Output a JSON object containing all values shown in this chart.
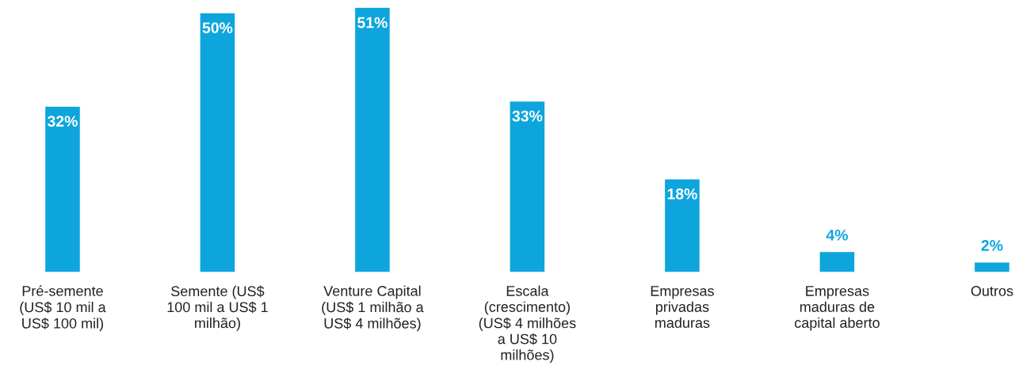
{
  "chart_data": {
    "type": "bar",
    "categories": [
      "Pré-semente (US$ 10 mil a US$ 100 mil)",
      "Semente (US$ 100 mil a US$ 1 milhão)",
      "Venture Capital (US$ 1 milhão a US$ 4 milhões)",
      "Escala (crescimento) (US$ 4 milhões a US$ 10 milhões)",
      "Empresas privadas maduras",
      "Empresas maduras de capital aberto",
      "Outros"
    ],
    "values": [
      32,
      50,
      51,
      33,
      18,
      4,
      2
    ],
    "value_labels": [
      "32%",
      "50%",
      "51%",
      "33%",
      "18%",
      "4%",
      "2%"
    ],
    "color": "#0ea5dc"
  }
}
